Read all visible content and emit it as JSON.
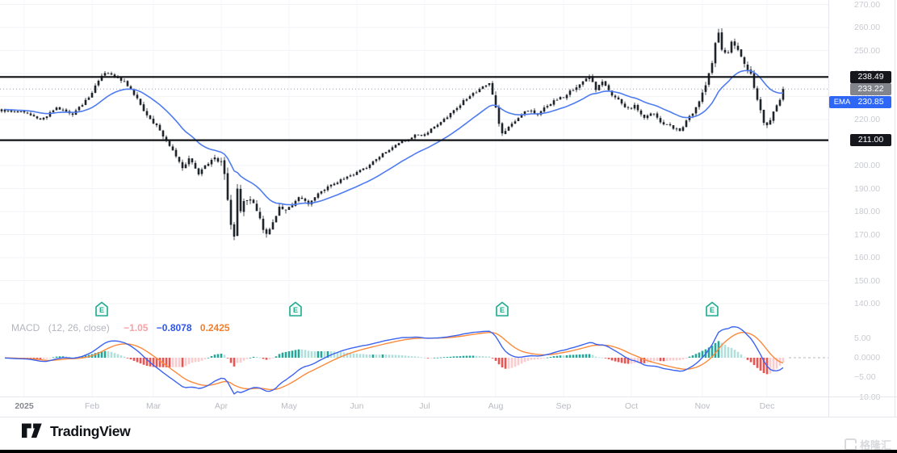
{
  "price_axis": {
    "ticks": [
      {
        "label": "270.00",
        "value": 270
      },
      {
        "label": "260.00",
        "value": 260
      },
      {
        "label": "250.00",
        "value": 250
      },
      {
        "label": "240.00",
        "value": 240
      },
      {
        "label": "230.00",
        "value": 230
      },
      {
        "label": "220.00",
        "value": 220
      },
      {
        "label": "210.00",
        "value": 210
      },
      {
        "label": "200.00",
        "value": 200
      },
      {
        "label": "190.00",
        "value": 190
      },
      {
        "label": "180.00",
        "value": 180
      },
      {
        "label": "170.00",
        "value": 170
      },
      {
        "label": "160.00",
        "value": 160
      },
      {
        "label": "150.00",
        "value": 150
      },
      {
        "label": "140.00",
        "value": 140
      }
    ]
  },
  "macd_axis": {
    "ticks": [
      {
        "label": "5.00",
        "value": 5
      },
      {
        "label": "0.0000",
        "value": 0
      },
      {
        "label": "−5.00",
        "value": -5
      },
      {
        "label": "−10.00",
        "value": -10
      }
    ]
  },
  "time_axis": {
    "labels": [
      {
        "label": "2025",
        "day": 7,
        "bold": true
      },
      {
        "label": "Feb",
        "day": 28
      },
      {
        "label": "Mar",
        "day": 47
      },
      {
        "label": "Apr",
        "day": 68
      },
      {
        "label": "May",
        "day": 89
      },
      {
        "label": "Jun",
        "day": 110
      },
      {
        "label": "Jul",
        "day": 131
      },
      {
        "label": "Aug",
        "day": 153
      },
      {
        "label": "Sep",
        "day": 174
      },
      {
        "label": "Oct",
        "day": 195
      },
      {
        "label": "Nov",
        "day": 217
      },
      {
        "label": "Dec",
        "day": 237
      }
    ]
  },
  "levels": [
    {
      "label": "238.49",
      "value": 238.49
    },
    {
      "label": "211.00",
      "value": 211.0
    }
  ],
  "price_line": {
    "label": "233.22",
    "value": 233.22
  },
  "ema_badge": {
    "tag": "EMA",
    "label": "230.85",
    "value": 230.85
  },
  "macd_legend": {
    "title": "MACD",
    "params": "(12, 26, close)",
    "hist_value": "−1.05",
    "macd_value": "−0.8078",
    "signal_value": "0.2425"
  },
  "earnings_badges": {
    "letter": "E",
    "days": [
      31,
      91,
      155,
      220
    ],
    "color": "#1fa98d"
  },
  "footer": {
    "brand": "TradingView",
    "watermark": "格隆汇"
  },
  "colors": {
    "candle": "#1f232a",
    "ema_line": "#4f7cf0",
    "level_line": "#0f1114",
    "dotted_line": "#9aa0a8",
    "macd_line": "#3c64f0",
    "signal_line": "#fb8a3c",
    "hist_up_strong": "#26a69a",
    "hist_up_weak": "#b2dfdb",
    "hist_dn_strong": "#ef5350",
    "hist_dn_weak": "#fccbcd",
    "grid": "#f1f3f7",
    "badge_black": "#15171c",
    "badge_gray": "#82858c",
    "badge_blue": "#2e66f6"
  },
  "chart_data": {
    "type": "candlestick",
    "description": "Daily price candles (late Dec 2024 - early Dec 2025) with EMA overlay, two horizontal levels, and MACD(12,26,9) sub-pane",
    "num_days": 243,
    "last_close": 233.22,
    "ema_period": 21,
    "macd": {
      "fast": 12,
      "slow": 26,
      "signal": 9
    },
    "ylim_price": [
      138,
      272
    ],
    "ylim_macd": [
      -11,
      6.5
    ],
    "levels": [
      238.49,
      211.0
    ],
    "price_waypoints": [
      [
        0,
        224
      ],
      [
        7,
        223
      ],
      [
        12,
        219.5
      ],
      [
        17,
        225
      ],
      [
        22,
        222
      ],
      [
        26,
        228
      ],
      [
        28,
        232
      ],
      [
        30,
        237
      ],
      [
        32,
        240.5
      ],
      [
        36,
        238.5
      ],
      [
        39,
        235
      ],
      [
        42,
        229
      ],
      [
        45,
        222
      ],
      [
        47,
        219
      ],
      [
        50,
        213
      ],
      [
        53,
        206
      ],
      [
        56,
        199
      ],
      [
        58,
        203
      ],
      [
        61,
        196
      ],
      [
        63,
        200
      ],
      [
        66,
        203
      ],
      [
        68,
        201
      ],
      [
        69,
        196
      ],
      [
        70,
        186
      ],
      [
        71,
        173
      ],
      [
        72,
        168.5
      ],
      [
        73,
        189
      ],
      [
        74,
        181
      ],
      [
        76,
        186
      ],
      [
        78,
        184
      ],
      [
        80,
        177
      ],
      [
        82,
        169.5
      ],
      [
        84,
        176
      ],
      [
        86,
        182
      ],
      [
        88,
        180
      ],
      [
        89,
        182
      ],
      [
        92,
        186
      ],
      [
        95,
        183.5
      ],
      [
        98,
        188
      ],
      [
        101,
        191
      ],
      [
        104,
        193
      ],
      [
        107,
        195
      ],
      [
        110,
        197
      ],
      [
        113,
        199
      ],
      [
        116,
        203
      ],
      [
        119,
        206
      ],
      [
        122,
        209
      ],
      [
        125,
        211
      ],
      [
        128,
        213
      ],
      [
        131,
        213.5
      ],
      [
        134,
        217
      ],
      [
        137,
        220
      ],
      [
        140,
        224
      ],
      [
        143,
        228
      ],
      [
        146,
        231
      ],
      [
        149,
        234
      ],
      [
        151,
        236
      ],
      [
        153,
        225
      ],
      [
        154,
        218
      ],
      [
        155,
        213.5
      ],
      [
        157,
        217
      ],
      [
        160,
        221
      ],
      [
        163,
        224
      ],
      [
        166,
        222
      ],
      [
        169,
        226
      ],
      [
        172,
        229
      ],
      [
        174,
        230
      ],
      [
        178,
        234
      ],
      [
        182,
        238.5
      ],
      [
        184,
        233
      ],
      [
        186,
        236
      ],
      [
        189,
        231
      ],
      [
        192,
        227
      ],
      [
        194,
        224.5
      ],
      [
        196,
        226
      ],
      [
        199,
        220.5
      ],
      [
        202,
        223
      ],
      [
        204,
        219
      ],
      [
        207,
        217
      ],
      [
        210,
        215
      ],
      [
        213,
        221
      ],
      [
        215,
        225
      ],
      [
        216,
        228
      ],
      [
        218,
        234
      ],
      [
        220,
        245
      ],
      [
        221,
        253
      ],
      [
        222,
        257
      ],
      [
        223,
        251
      ],
      [
        225,
        249
      ],
      [
        226,
        254
      ],
      [
        228,
        250
      ],
      [
        230,
        244
      ],
      [
        232,
        239
      ],
      [
        233,
        234
      ],
      [
        234,
        228
      ],
      [
        236,
        219
      ],
      [
        237,
        217.5
      ],
      [
        239,
        223
      ],
      [
        241,
        228
      ],
      [
        242,
        233.22
      ]
    ],
    "volatility_waypoints": [
      [
        0,
        0.9
      ],
      [
        26,
        1.1
      ],
      [
        45,
        1.5
      ],
      [
        66,
        1.5
      ],
      [
        69,
        3.4
      ],
      [
        74,
        2.6
      ],
      [
        80,
        2.8
      ],
      [
        86,
        1.8
      ],
      [
        95,
        1.4
      ],
      [
        108,
        0.9
      ],
      [
        130,
        0.9
      ],
      [
        150,
        1.1
      ],
      [
        153,
        2.0
      ],
      [
        158,
        1.1
      ],
      [
        172,
        1.2
      ],
      [
        176,
        1.4
      ],
      [
        186,
        1.3
      ],
      [
        196,
        1.2
      ],
      [
        214,
        1.2
      ],
      [
        217,
        1.9
      ],
      [
        222,
        2.3
      ],
      [
        230,
        1.9
      ],
      [
        236,
        1.9
      ],
      [
        242,
        1.4
      ]
    ]
  }
}
